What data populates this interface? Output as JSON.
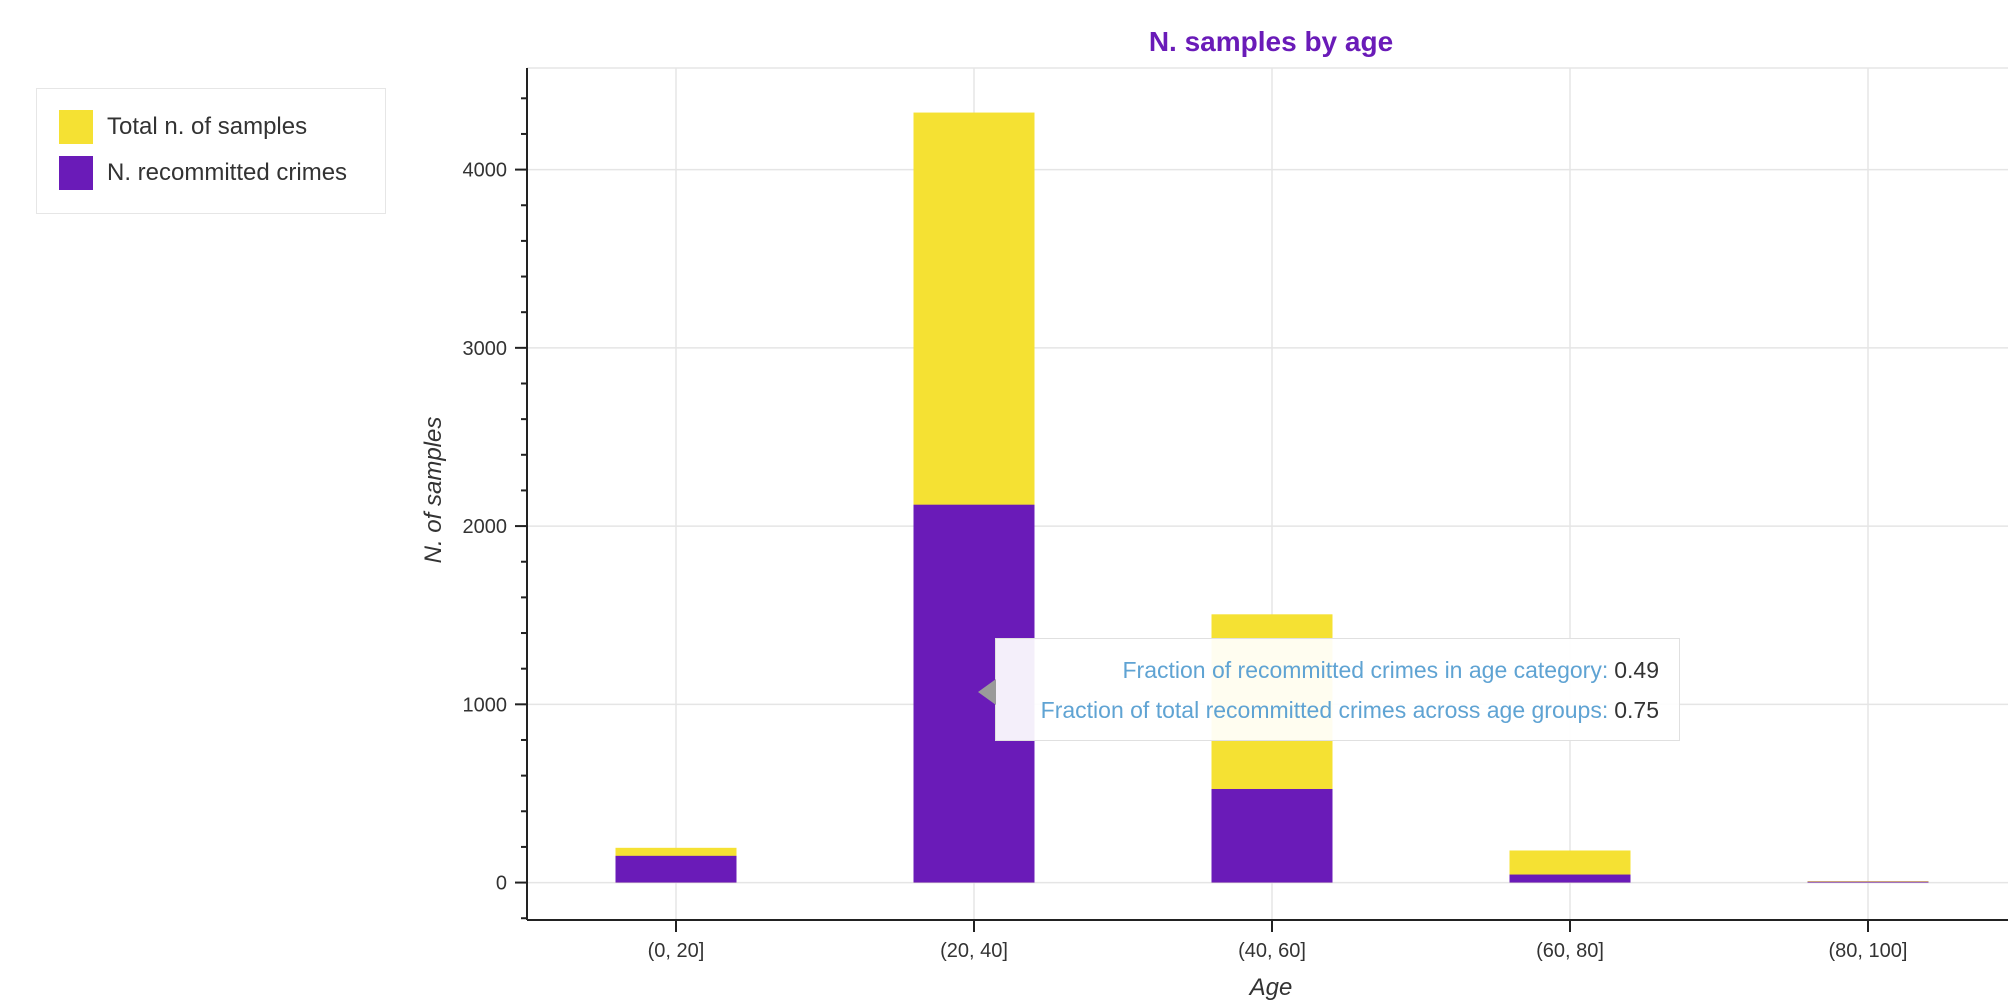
{
  "colors": {
    "total": "#f5e133",
    "recommitted": "#6a1bb8",
    "title": "#6a1bb8",
    "tooltip_label": "#5fa3d3",
    "grid": "#e5e5e5"
  },
  "legend": {
    "items": [
      {
        "label": "Total n. of samples",
        "color": "#f5e133"
      },
      {
        "label": "N. recommitted crimes",
        "color": "#6a1bb8"
      }
    ]
  },
  "tooltip": {
    "rows": [
      {
        "label": "Fraction of recommitted crimes in age category:",
        "value": "0.49"
      },
      {
        "label": "Fraction of total recommitted crimes across age groups:",
        "value": "0.75"
      }
    ]
  },
  "chart_data": {
    "type": "bar",
    "title": "N. samples by age",
    "xlabel": "Age",
    "ylabel": "N. of samples",
    "categories": [
      "(0, 20]",
      "(20, 40]",
      "(40, 60]",
      "(60, 80]",
      "(80, 100]"
    ],
    "series": [
      {
        "name": "Total n. of samples",
        "values": [
          195,
          4320,
          1505,
          180,
          8
        ]
      },
      {
        "name": "N. recommitted crimes",
        "values": [
          150,
          2120,
          525,
          45,
          5
        ]
      }
    ],
    "yticks": [
      0,
      1000,
      2000,
      3000,
      4000
    ],
    "ylim": [
      -210,
      4570
    ],
    "grid": true,
    "legend_position": "left, outside"
  }
}
